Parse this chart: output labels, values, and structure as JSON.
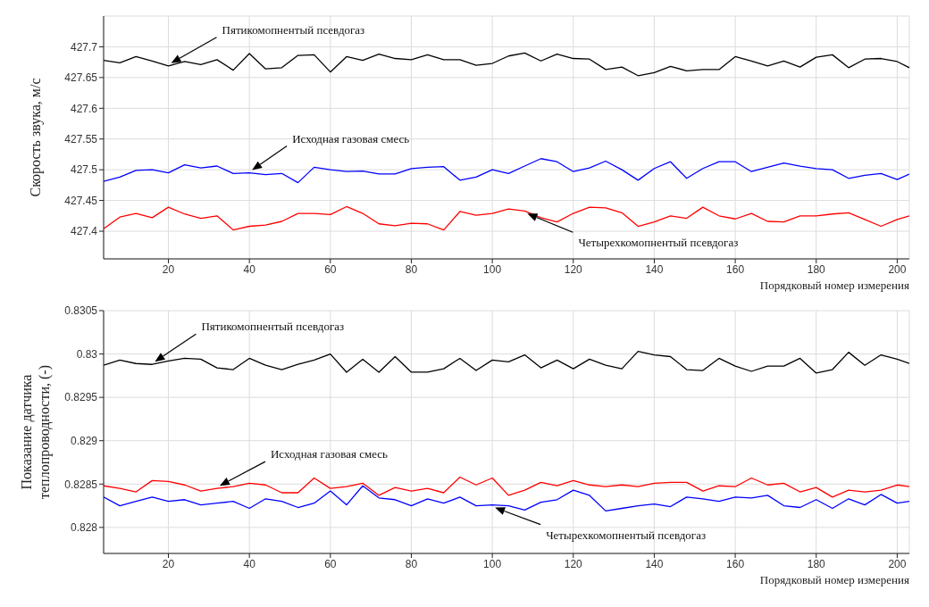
{
  "chart_data": [
    {
      "type": "line",
      "ylabel": "Скорость звука, м/с",
      "xlabel": "Порядковый номер измерения",
      "grid": true,
      "xlim": [
        4,
        203
      ],
      "xticks": [
        20,
        40,
        60,
        80,
        100,
        120,
        140,
        160,
        180,
        200
      ],
      "ylim": [
        427.355,
        427.75
      ],
      "yticks": [
        427.4,
        427.45,
        427.5,
        427.55,
        427.6,
        427.65,
        427.7
      ],
      "x": [
        4,
        8,
        12,
        16,
        20,
        24,
        28,
        32,
        36,
        40,
        44,
        48,
        52,
        56,
        60,
        64,
        68,
        72,
        76,
        80,
        84,
        88,
        92,
        96,
        100,
        104,
        108,
        112,
        116,
        120,
        124,
        128,
        132,
        136,
        140,
        144,
        148,
        152,
        156,
        160,
        164,
        168,
        172,
        176,
        180,
        184,
        188,
        192,
        196,
        200,
        203
      ],
      "series": [
        {
          "name": "Пятикомопнентый псевдогаз",
          "color": "#000000",
          "values": [
            427.678,
            427.674,
            427.684,
            427.677,
            427.669,
            427.676,
            427.671,
            427.679,
            427.662,
            427.689,
            427.664,
            427.666,
            427.686,
            427.687,
            427.659,
            427.684,
            427.678,
            427.688,
            427.681,
            427.679,
            427.687,
            427.679,
            427.679,
            427.67,
            427.673,
            427.685,
            427.69,
            427.677,
            427.688,
            427.681,
            427.68,
            427.663,
            427.667,
            427.653,
            427.658,
            427.668,
            427.661,
            427.663,
            427.663,
            427.684,
            427.677,
            427.669,
            427.677,
            427.667,
            427.683,
            427.687,
            427.666,
            427.68,
            427.681,
            427.676,
            427.666
          ]
        },
        {
          "name": "Исходная газовая смесь",
          "color": "#0000ff",
          "values": [
            427.481,
            427.488,
            427.499,
            427.5,
            427.495,
            427.508,
            427.503,
            427.506,
            427.494,
            427.495,
            427.492,
            427.494,
            427.479,
            427.504,
            427.5,
            427.497,
            427.498,
            427.493,
            427.493,
            427.502,
            427.504,
            427.505,
            427.483,
            427.488,
            427.5,
            427.494,
            427.506,
            427.518,
            427.513,
            427.497,
            427.503,
            427.514,
            427.5,
            427.483,
            427.502,
            427.513,
            427.486,
            427.502,
            427.513,
            427.513,
            427.497,
            427.504,
            427.511,
            427.506,
            427.502,
            427.5,
            427.486,
            427.491,
            427.494,
            427.484,
            427.493
          ]
        },
        {
          "name": "Четырехкомопнентый псевдогаз",
          "color": "#ff0000",
          "values": [
            427.404,
            427.423,
            427.429,
            427.422,
            427.439,
            427.428,
            427.421,
            427.425,
            427.402,
            427.408,
            427.41,
            427.416,
            427.429,
            427.429,
            427.427,
            427.44,
            427.429,
            427.412,
            427.409,
            427.413,
            427.412,
            427.402,
            427.432,
            427.426,
            427.429,
            427.436,
            427.433,
            427.422,
            427.415,
            427.429,
            427.439,
            427.438,
            427.43,
            427.408,
            427.415,
            427.425,
            427.421,
            427.439,
            427.425,
            427.42,
            427.429,
            427.416,
            427.415,
            427.425,
            427.425,
            427.428,
            427.43,
            427.419,
            427.408,
            427.419,
            427.425
          ]
        }
      ],
      "legend": false
    },
    {
      "type": "line",
      "ylabel": "Показание датчика теплопроводности, (-)",
      "xlabel": "Порядковый номер измерения",
      "grid": true,
      "xlim": [
        4,
        203
      ],
      "xticks": [
        20,
        40,
        60,
        80,
        100,
        120,
        140,
        160,
        180,
        200
      ],
      "ylim": [
        0.8277,
        0.8305
      ],
      "yticks": [
        0.828,
        0.8285,
        0.829,
        0.8295,
        0.83,
        0.8305
      ],
      "x": [
        4,
        8,
        12,
        16,
        20,
        24,
        28,
        32,
        36,
        40,
        44,
        48,
        52,
        56,
        60,
        64,
        68,
        72,
        76,
        80,
        84,
        88,
        92,
        96,
        100,
        104,
        108,
        112,
        116,
        120,
        124,
        128,
        132,
        136,
        140,
        144,
        148,
        152,
        156,
        160,
        164,
        168,
        172,
        176,
        180,
        184,
        188,
        192,
        196,
        200,
        203
      ],
      "series": [
        {
          "name": "Пятикомопнентый псевдогаз",
          "color": "#000000",
          "values": [
            0.82987,
            0.82993,
            0.82989,
            0.82988,
            0.82992,
            0.82995,
            0.82994,
            0.82984,
            0.82982,
            0.82995,
            0.82987,
            0.82982,
            0.82988,
            0.82993,
            0.83,
            0.82979,
            0.82994,
            0.82979,
            0.82997,
            0.82979,
            0.82979,
            0.82983,
            0.82995,
            0.82981,
            0.82993,
            0.82991,
            0.82999,
            0.82984,
            0.82993,
            0.82983,
            0.82994,
            0.82987,
            0.82983,
            0.83003,
            0.82999,
            0.82997,
            0.82982,
            0.82981,
            0.82995,
            0.82986,
            0.8298,
            0.82986,
            0.82986,
            0.82995,
            0.82978,
            0.82982,
            0.83002,
            0.82987,
            0.82999,
            0.82994,
            0.82989
          ]
        },
        {
          "name": "Исходная газовая смесь",
          "color": "#ff0000",
          "values": [
            0.82848,
            0.82845,
            0.82841,
            0.82854,
            0.82853,
            0.82849,
            0.82842,
            0.82845,
            0.82847,
            0.82851,
            0.82849,
            0.8284,
            0.8284,
            0.82857,
            0.82845,
            0.82847,
            0.82851,
            0.82837,
            0.82846,
            0.82842,
            0.82845,
            0.8284,
            0.82858,
            0.82849,
            0.82857,
            0.82837,
            0.82843,
            0.82852,
            0.82848,
            0.82854,
            0.82849,
            0.82847,
            0.82849,
            0.82847,
            0.82851,
            0.82852,
            0.82852,
            0.82842,
            0.82848,
            0.82847,
            0.82857,
            0.82849,
            0.82851,
            0.82841,
            0.82846,
            0.82835,
            0.82843,
            0.82841,
            0.82843,
            0.82849,
            0.82847
          ]
        },
        {
          "name": "Четырехкомопнентый псевдогаз",
          "color": "#0000ff",
          "values": [
            0.82835,
            0.82825,
            0.8283,
            0.82835,
            0.8283,
            0.82832,
            0.82826,
            0.82828,
            0.8283,
            0.82822,
            0.82833,
            0.8283,
            0.82823,
            0.82828,
            0.82842,
            0.82826,
            0.82848,
            0.82834,
            0.82832,
            0.82825,
            0.82833,
            0.82828,
            0.82835,
            0.82825,
            0.82826,
            0.82825,
            0.8282,
            0.82829,
            0.82832,
            0.82843,
            0.82837,
            0.82819,
            0.82822,
            0.82825,
            0.82827,
            0.82824,
            0.82835,
            0.82833,
            0.8283,
            0.82835,
            0.82834,
            0.82837,
            0.82825,
            0.82823,
            0.82832,
            0.82822,
            0.82833,
            0.82826,
            0.82838,
            0.82828,
            0.8283
          ]
        }
      ],
      "legend": false
    }
  ]
}
